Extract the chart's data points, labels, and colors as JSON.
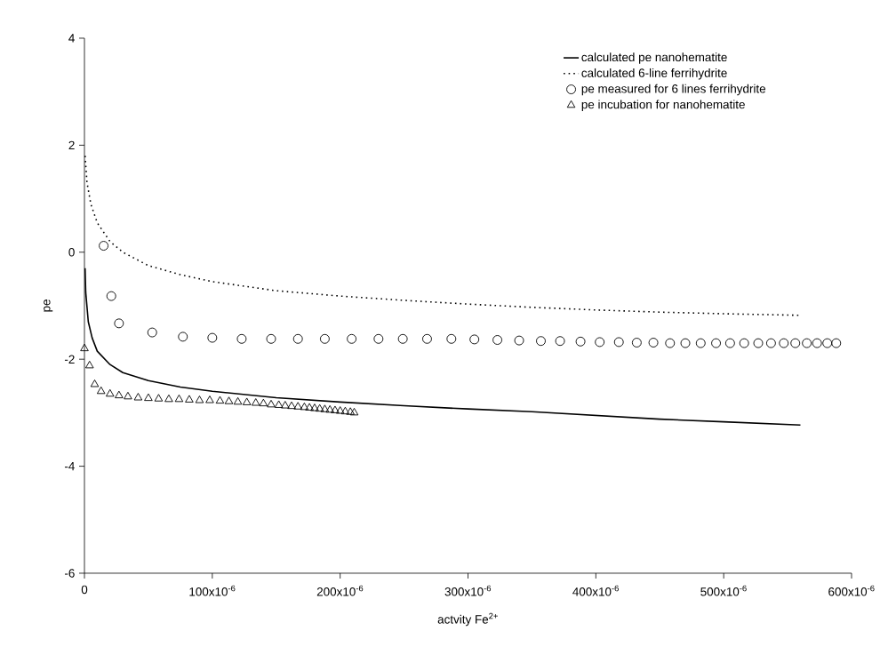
{
  "chart_data": {
    "type": "line",
    "xlabel": "actvity Fe$^{2+}$",
    "ylabel": "pe",
    "xlim": [
      0,
      0.0006
    ],
    "ylim": [
      -6,
      4
    ],
    "xticks": [
      0,
      {
        "value": 0.0001,
        "label": "100x10$^{-6}$"
      },
      {
        "value": 0.0002,
        "label": "200x10$^{-6}$"
      },
      {
        "value": 0.0003,
        "label": "300x10$^{-6}$"
      },
      {
        "value": 0.0004,
        "label": "400x10$^{-6}$"
      },
      {
        "value": 0.0005,
        "label": "500x10$^{-6}$"
      },
      {
        "value": 0.0006,
        "label": "600x10$^{-6}$"
      }
    ],
    "yticks": [
      -6,
      -4,
      -2,
      0,
      2,
      4
    ],
    "grid": false,
    "legend": "top right",
    "series": [
      {
        "name": "calculated pe nanohematite",
        "color": "#000000",
        "line_style": "solid",
        "marker": "none",
        "x": [
          5e-07,
          1e-06,
          3e-06,
          6e-06,
          1e-05,
          2e-05,
          3e-05,
          5e-05,
          7.5e-05,
          0.0001,
          0.00015,
          0.0002,
          0.00025,
          0.0003,
          0.00035,
          0.0004,
          0.00045,
          0.0005,
          0.00056
        ],
        "values": [
          -0.3,
          -0.75,
          -1.3,
          -1.6,
          -1.85,
          -2.1,
          -2.25,
          -2.4,
          -2.52,
          -2.6,
          -2.72,
          -2.8,
          -2.87,
          -2.93,
          -2.98,
          -3.05,
          -3.12,
          -3.17,
          -3.23
        ]
      },
      {
        "name": "calculated 6-line ferrihydrite",
        "color": "#000000",
        "line_style": "dotted",
        "marker": "none",
        "x": [
          5e-07,
          2e-06,
          5e-06,
          1e-05,
          2e-05,
          3e-05,
          5e-05,
          7.5e-05,
          0.0001,
          0.00015,
          0.0002,
          0.00025,
          0.0003,
          0.00035,
          0.0004,
          0.00045,
          0.0005,
          0.00056
        ],
        "values": [
          1.8,
          1.3,
          0.9,
          0.55,
          0.2,
          0.0,
          -0.25,
          -0.42,
          -0.55,
          -0.72,
          -0.82,
          -0.9,
          -0.97,
          -1.03,
          -1.08,
          -1.12,
          -1.15,
          -1.18
        ]
      },
      {
        "name": "pe measured for 6 lines ferrihydrite",
        "type": "scatter",
        "color": "#000000",
        "marker": "circle",
        "x": [
          1.5e-05,
          2.1e-05,
          2.7e-05,
          5.3e-05,
          7.7e-05,
          0.0001,
          0.000123,
          0.000146,
          0.000167,
          0.000188,
          0.000209,
          0.00023,
          0.000249,
          0.000268,
          0.000287,
          0.000305,
          0.000323,
          0.00034,
          0.000357,
          0.000372,
          0.000388,
          0.000403,
          0.000418,
          0.000432,
          0.000445,
          0.000458,
          0.00047,
          0.000482,
          0.000494,
          0.000505,
          0.000516,
          0.000527,
          0.000537,
          0.000547,
          0.000556,
          0.000565,
          0.000573,
          0.000581,
          0.000588
        ],
        "values": [
          0.12,
          -0.82,
          -1.33,
          -1.5,
          -1.58,
          -1.6,
          -1.62,
          -1.62,
          -1.62,
          -1.62,
          -1.62,
          -1.62,
          -1.62,
          -1.62,
          -1.62,
          -1.63,
          -1.64,
          -1.65,
          -1.66,
          -1.66,
          -1.67,
          -1.68,
          -1.68,
          -1.69,
          -1.69,
          -1.7,
          -1.7,
          -1.7,
          -1.7,
          -1.7,
          -1.7,
          -1.7,
          -1.7,
          -1.7,
          -1.7,
          -1.7,
          -1.7,
          -1.7,
          -1.7
        ]
      },
      {
        "name": "pe incubation for nanohematite",
        "type": "scatter",
        "color": "#000000",
        "marker": "triangle",
        "x": [
          0,
          4e-06,
          8e-06,
          1.3e-05,
          2e-05,
          2.7e-05,
          3.4e-05,
          4.2e-05,
          5e-05,
          5.8e-05,
          6.6e-05,
          7.4e-05,
          8.2e-05,
          9e-05,
          9.8e-05,
          0.000106,
          0.000113,
          0.00012,
          0.000127,
          0.000134,
          0.00014,
          0.000146,
          0.000152,
          0.000157,
          0.000162,
          0.000167,
          0.000172,
          0.000176,
          0.00018,
          0.000184,
          0.000188,
          0.000192,
          0.000196,
          0.0002,
          0.000204,
          0.000208,
          0.000211
        ],
        "values": [
          -1.8,
          -2.12,
          -2.47,
          -2.6,
          -2.65,
          -2.68,
          -2.7,
          -2.72,
          -2.73,
          -2.74,
          -2.75,
          -2.75,
          -2.76,
          -2.77,
          -2.77,
          -2.78,
          -2.79,
          -2.8,
          -2.81,
          -2.82,
          -2.83,
          -2.85,
          -2.86,
          -2.87,
          -2.88,
          -2.89,
          -2.9,
          -2.91,
          -2.92,
          -2.93,
          -2.94,
          -2.95,
          -2.96,
          -2.97,
          -2.98,
          -2.99,
          -3.0
        ]
      }
    ]
  }
}
